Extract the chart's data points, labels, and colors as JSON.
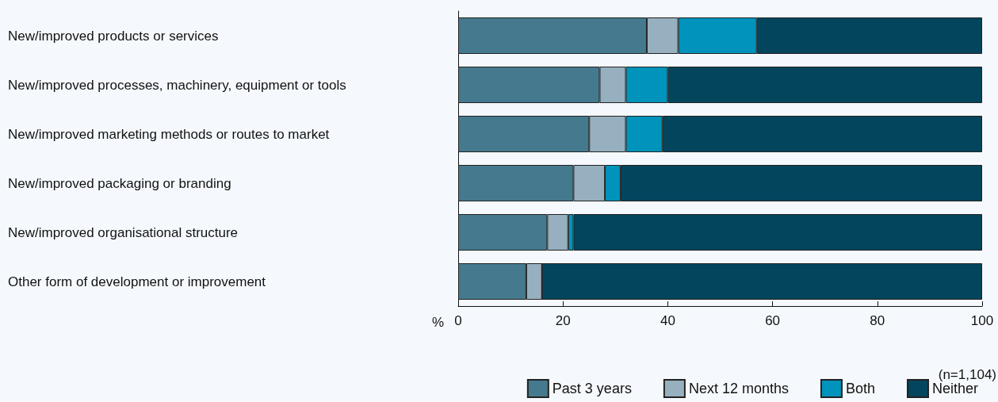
{
  "chart_data": {
    "type": "bar",
    "orientation": "horizontal",
    "stacked": true,
    "categories": [
      "New/improved products or services",
      "New/improved processes, machinery, equipment or tools",
      "New/improved marketing methods or routes to market",
      "New/improved packaging or branding",
      "New/improved organisational structure",
      "Other form of development or improvement"
    ],
    "series": [
      {
        "name": "Past 3 years",
        "color": "#457a8e",
        "values": [
          36,
          27,
          25,
          22,
          17,
          13
        ]
      },
      {
        "name": "Next 12 months",
        "color": "#97b0bf",
        "values": [
          6,
          5,
          7,
          6,
          4,
          3
        ]
      },
      {
        "name": "Both",
        "color": "#0093bb",
        "values": [
          15,
          8,
          7,
          3,
          1,
          0
        ]
      },
      {
        "name": "Neither",
        "color": "#03455c",
        "values": [
          43,
          60,
          61,
          69,
          78,
          84
        ]
      }
    ],
    "xlabel": "%",
    "xlim": [
      0,
      100
    ],
    "xticks": [
      0,
      20,
      40,
      60,
      80,
      100
    ],
    "grid": false,
    "legend": "bottom right",
    "annotations": [
      "(n=1,104)"
    ]
  }
}
